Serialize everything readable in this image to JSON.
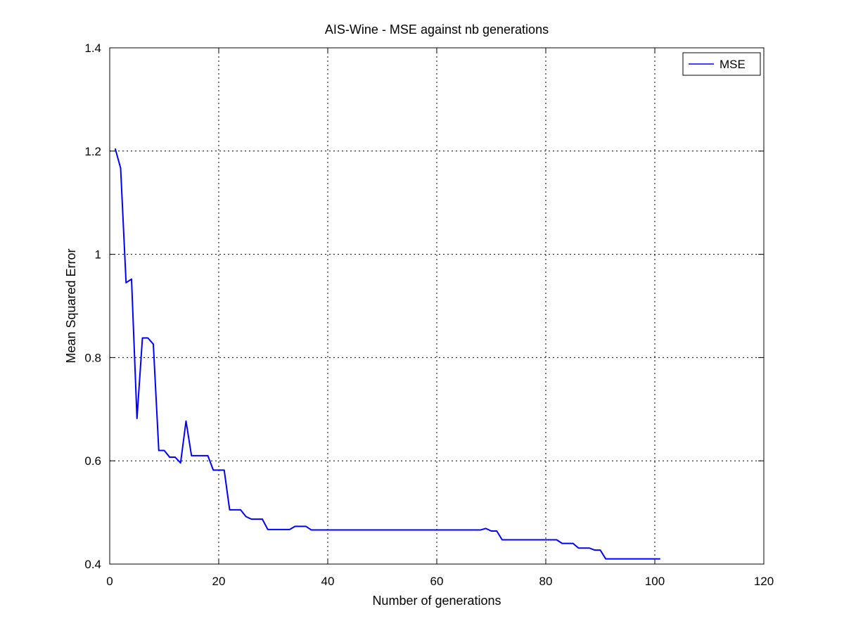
{
  "chart_data": {
    "type": "line",
    "title": "AIS-Wine - MSE against nb generations",
    "xlabel": "Number of generations",
    "ylabel": "Mean Squared Error",
    "xlim": [
      0,
      120
    ],
    "ylim": [
      0.4,
      1.4
    ],
    "xticks": [
      0,
      20,
      40,
      60,
      80,
      100,
      120
    ],
    "yticks": [
      0.4,
      0.6,
      0.8,
      1.0,
      1.2,
      1.4
    ],
    "xtick_labels": [
      "0",
      "20",
      "40",
      "60",
      "80",
      "100",
      "120"
    ],
    "ytick_labels": [
      "0.4",
      "0.6",
      "0.8",
      "1",
      "1.2",
      "1.4"
    ],
    "grid": true,
    "legend_position": "top-right",
    "series": [
      {
        "name": "MSE",
        "color": "#0000ff",
        "x": [
          1,
          2,
          3,
          4,
          5,
          6,
          7,
          8,
          9,
          10,
          11,
          12,
          13,
          14,
          15,
          16,
          17,
          18,
          19,
          20,
          21,
          22,
          23,
          24,
          25,
          26,
          27,
          28,
          29,
          30,
          31,
          32,
          33,
          34,
          35,
          36,
          37,
          38,
          39,
          40,
          41,
          42,
          43,
          44,
          45,
          46,
          47,
          48,
          49,
          50,
          51,
          52,
          53,
          54,
          55,
          56,
          57,
          58,
          59,
          60,
          61,
          62,
          63,
          64,
          65,
          66,
          67,
          68,
          69,
          70,
          71,
          72,
          73,
          74,
          75,
          76,
          77,
          78,
          79,
          80,
          81,
          82,
          83,
          84,
          85,
          86,
          87,
          88,
          89,
          90,
          91,
          92,
          93,
          94,
          95,
          96,
          97,
          98,
          99,
          100,
          101
        ],
        "values": [
          1.205,
          1.167,
          0.945,
          0.952,
          0.682,
          0.838,
          0.838,
          0.826,
          0.62,
          0.62,
          0.607,
          0.607,
          0.596,
          0.677,
          0.61,
          0.61,
          0.61,
          0.61,
          0.582,
          0.582,
          0.582,
          0.505,
          0.505,
          0.505,
          0.492,
          0.487,
          0.487,
          0.487,
          0.467,
          0.467,
          0.467,
          0.467,
          0.467,
          0.473,
          0.473,
          0.473,
          0.466,
          0.466,
          0.466,
          0.466,
          0.466,
          0.466,
          0.466,
          0.466,
          0.466,
          0.466,
          0.466,
          0.466,
          0.466,
          0.466,
          0.466,
          0.466,
          0.466,
          0.466,
          0.466,
          0.466,
          0.466,
          0.466,
          0.466,
          0.466,
          0.466,
          0.466,
          0.466,
          0.466,
          0.466,
          0.466,
          0.466,
          0.466,
          0.469,
          0.464,
          0.464,
          0.447,
          0.447,
          0.447,
          0.447,
          0.447,
          0.447,
          0.447,
          0.447,
          0.447,
          0.447,
          0.447,
          0.44,
          0.44,
          0.44,
          0.431,
          0.431,
          0.431,
          0.427,
          0.427,
          0.41,
          0.41,
          0.41,
          0.41,
          0.41,
          0.41,
          0.41,
          0.41,
          0.41,
          0.41,
          0.41
        ]
      }
    ]
  }
}
